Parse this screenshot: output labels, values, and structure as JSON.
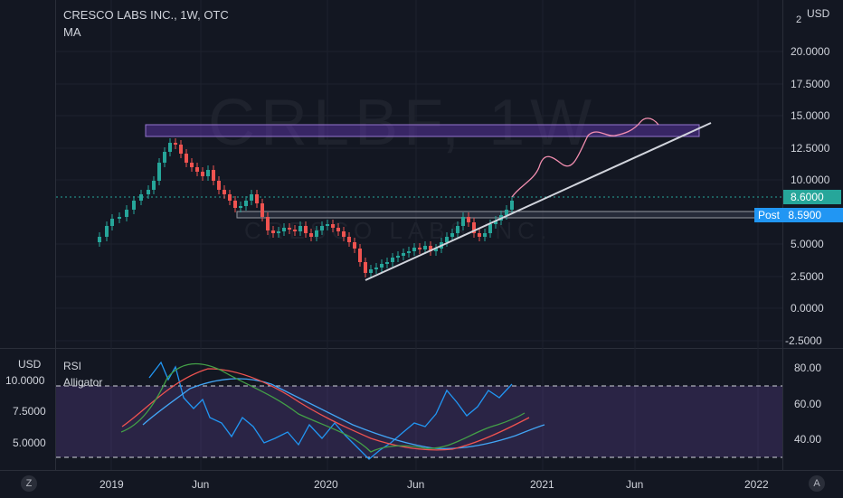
{
  "header": {
    "title": "CRESCO LABS INC., 1W, OTC",
    "indicator_ma": "MA",
    "currency": "USD",
    "currency_small": "2"
  },
  "watermark": {
    "ticker": "CRLBF, 1W",
    "name": "CRESCO LABS INC."
  },
  "price_axis": {
    "ticks": [
      "20.0000",
      "17.5000",
      "15.0000",
      "12.5000",
      "10.0000",
      "5.0000",
      "2.5000",
      "0.0000",
      "-2.5000"
    ],
    "last_price": "8.6000",
    "post_label": "Post",
    "post_price": "8.5900",
    "last_price_color": "#26a69a",
    "post_color": "#2196f3"
  },
  "rsi_pane": {
    "rsi_label": "RSI",
    "alligator_label": "Alligator",
    "left_currency": "USD",
    "left_ticks": [
      "10.0000",
      "7.5000",
      "5.0000"
    ],
    "right_ticks": [
      "80.00",
      "60.00",
      "40.00"
    ]
  },
  "time_axis": {
    "ticks": [
      "2019",
      "Jun",
      "2020",
      "Jun",
      "2021",
      "Jun",
      "2022"
    ]
  },
  "corner_buttons": {
    "left": "Z",
    "right": "A"
  },
  "colors": {
    "background": "#131722",
    "up_candle": "#26a69a",
    "down_candle": "#ef5350",
    "zone_fill": "#673ab7",
    "trendline": "#d1d4dc",
    "projection": "#f48fb1",
    "rsi_line": "#2196f3",
    "rsi_band": "#7e57c2"
  }
}
